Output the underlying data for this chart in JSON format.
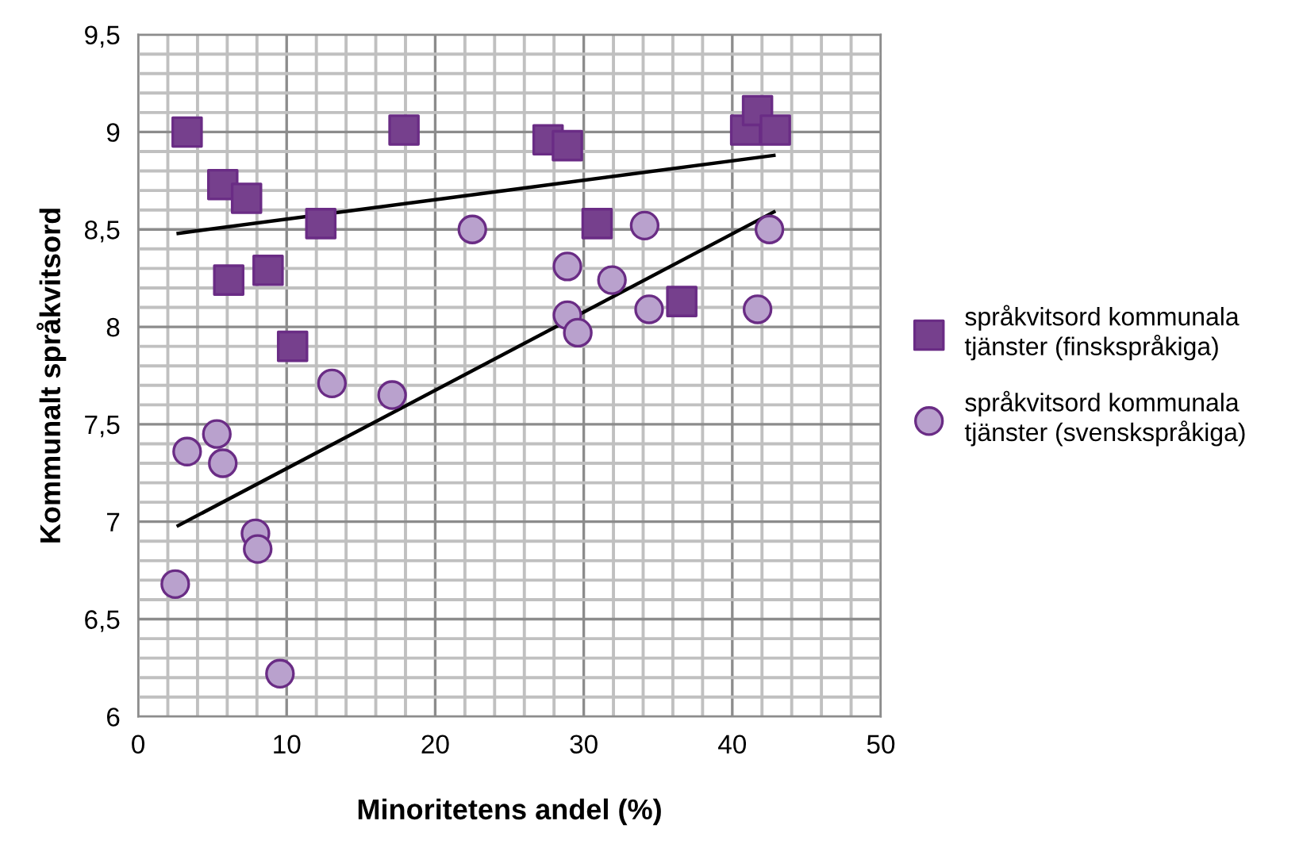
{
  "chart_data": {
    "type": "scatter",
    "xlabel": "Minoritetens andel (%)",
    "ylabel": "Kommunalt språkvitsord",
    "xlim": [
      0,
      50
    ],
    "ylim": [
      6,
      9.5
    ],
    "xticks": [
      0,
      10,
      20,
      30,
      40,
      50
    ],
    "yticks": [
      {
        "value": 6,
        "label": "6"
      },
      {
        "value": 6.5,
        "label": "6,5"
      },
      {
        "value": 7,
        "label": "7"
      },
      {
        "value": 7.5,
        "label": "7,5"
      },
      {
        "value": 8,
        "label": "8"
      },
      {
        "value": 8.5,
        "label": "8,5"
      },
      {
        "value": 9,
        "label": "9"
      },
      {
        "value": 9.5,
        "label": "9,5"
      }
    ],
    "grid": true,
    "legend": "right",
    "series": [
      {
        "name": "språkvitsord kommunala\ntjänster (finskspråkiga)",
        "marker": "square",
        "color": "#76408d",
        "x": [
          3.3,
          5.7,
          7.3,
          12.3,
          6.1,
          8.75,
          10.4,
          17.9,
          27.6,
          28.9,
          30.9,
          36.6,
          40.9,
          41.7,
          42.9
        ],
        "values": [
          9.0,
          8.73,
          8.66,
          8.53,
          8.24,
          8.29,
          7.9,
          9.01,
          8.96,
          8.93,
          8.53,
          8.13,
          9.01,
          9.11,
          9.01
        ]
      },
      {
        "name": "språkvitsord kommunala\ntjänster (svenskspråkiga)",
        "marker": "circle",
        "color": "#b9a1cd",
        "x": [
          22.5,
          34.1,
          42.5,
          28.9,
          31.9,
          34.4,
          41.7,
          28.9,
          29.6,
          13.05,
          17.1,
          5.3,
          3.3,
          5.7,
          7.9,
          8.05,
          2.5,
          9.55
        ],
        "values": [
          8.5,
          8.52,
          8.5,
          8.31,
          8.24,
          8.09,
          8.09,
          8.06,
          7.97,
          7.71,
          7.65,
          7.45,
          7.36,
          7.3,
          6.94,
          6.86,
          6.68,
          6.22
        ]
      },
      {
        "type": "line",
        "color": "#000000",
        "x": [
          2.7,
          42.8
        ],
        "values": [
          8.48,
          8.88
        ]
      },
      {
        "type": "line",
        "color": "#000000",
        "x": [
          2.7,
          42.8
        ],
        "values": [
          6.98,
          8.59
        ]
      }
    ]
  }
}
